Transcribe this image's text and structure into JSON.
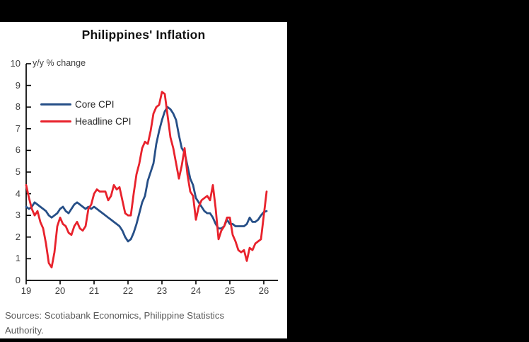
{
  "window": {
    "background_color": "#000000",
    "panel_color": "#ffffff"
  },
  "chart_data": {
    "type": "line",
    "title": "Philippines' Inflation",
    "unit_label": "y/y % change",
    "x_tick_labels": [
      "19",
      "20",
      "21",
      "22",
      "23",
      "24",
      "25",
      "26"
    ],
    "y_ticks": [
      0,
      1,
      2,
      3,
      4,
      5,
      6,
      7,
      8,
      9,
      10
    ],
    "ylim": [
      0,
      10
    ],
    "grid": false,
    "legend_position": "top-left",
    "frequency": "monthly",
    "x_start": "2019-01",
    "series": [
      {
        "name": "Core CPI",
        "color": "#264F87",
        "values": [
          3.4,
          3.3,
          3.4,
          3.6,
          3.5,
          3.4,
          3.3,
          3.2,
          3.0,
          2.9,
          3.0,
          3.1,
          3.3,
          3.4,
          3.2,
          3.1,
          3.3,
          3.5,
          3.6,
          3.5,
          3.4,
          3.3,
          3.4,
          3.3,
          3.4,
          3.3,
          3.2,
          3.1,
          3.0,
          2.9,
          2.8,
          2.7,
          2.6,
          2.5,
          2.3,
          2.0,
          1.8,
          1.9,
          2.2,
          2.6,
          3.1,
          3.6,
          3.9,
          4.6,
          5.0,
          5.4,
          6.3,
          6.9,
          7.4,
          7.8,
          8.0,
          7.9,
          7.7,
          7.4,
          6.7,
          6.1,
          5.9,
          5.3,
          4.7,
          4.4,
          3.8,
          3.6,
          3.4,
          3.2,
          3.1,
          3.1,
          2.9,
          2.6,
          2.4,
          2.4,
          2.5,
          2.8,
          2.6,
          2.6,
          2.5,
          2.5,
          2.5,
          2.5,
          2.6,
          2.9,
          2.7,
          2.7,
          2.8,
          3.0,
          3.15,
          3.2
        ]
      },
      {
        "name": "Headline CPI",
        "color": "#E8222C",
        "values": [
          4.4,
          3.8,
          3.3,
          3.0,
          3.2,
          2.7,
          2.4,
          1.7,
          0.8,
          0.6,
          1.3,
          2.5,
          2.9,
          2.6,
          2.5,
          2.2,
          2.1,
          2.5,
          2.7,
          2.4,
          2.3,
          2.5,
          3.3,
          3.5,
          4.0,
          4.2,
          4.1,
          4.1,
          4.1,
          3.7,
          3.9,
          4.4,
          4.2,
          4.3,
          3.7,
          3.1,
          3.0,
          3.0,
          4.0,
          4.9,
          5.4,
          6.1,
          6.4,
          6.3,
          6.9,
          7.7,
          8.0,
          8.1,
          8.7,
          8.6,
          7.6,
          6.6,
          6.1,
          5.4,
          4.7,
          5.3,
          6.1,
          4.9,
          4.1,
          3.9,
          2.8,
          3.4,
          3.7,
          3.8,
          3.9,
          3.7,
          4.4,
          3.3,
          1.9,
          2.3,
          2.5,
          2.9,
          2.9,
          2.1,
          1.8,
          1.4,
          1.3,
          1.4,
          0.9,
          1.5,
          1.4,
          1.7,
          1.8,
          1.9,
          3.0,
          4.1
        ]
      }
    ]
  },
  "footer": {
    "sources": "Sources: Scotiabank Economics, Philippine Statistics Authority."
  }
}
